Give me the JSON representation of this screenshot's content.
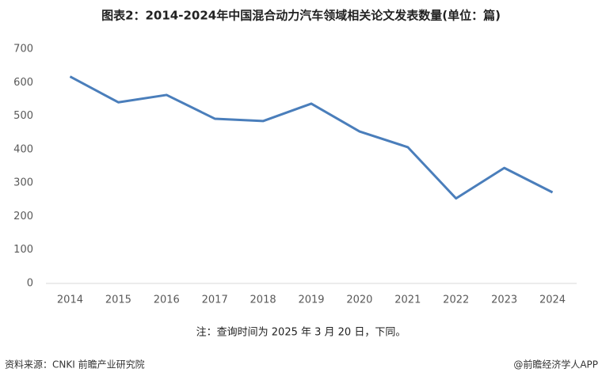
{
  "chart_data": {
    "type": "line",
    "title": "图表2：2014-2024年中国混合动力汽车领域相关论文发表数量(单位：篇)",
    "categories": [
      "2014",
      "2015",
      "2016",
      "2017",
      "2018",
      "2019",
      "2020",
      "2021",
      "2022",
      "2023",
      "2024"
    ],
    "values": [
      618,
      541,
      563,
      492,
      485,
      537,
      454,
      407,
      254,
      345,
      272
    ],
    "color": "#4a7ebb",
    "ylim": [
      0,
      700
    ],
    "yticks": [
      0,
      100,
      200,
      300,
      400,
      500,
      600,
      700
    ],
    "grid": false,
    "note": "注：查询时间为 2025 年 3 月 20 日，下同。",
    "source": "资料来源：CNKI 前瞻产业研究院",
    "credit": "@前瞻经济学人APP"
  }
}
